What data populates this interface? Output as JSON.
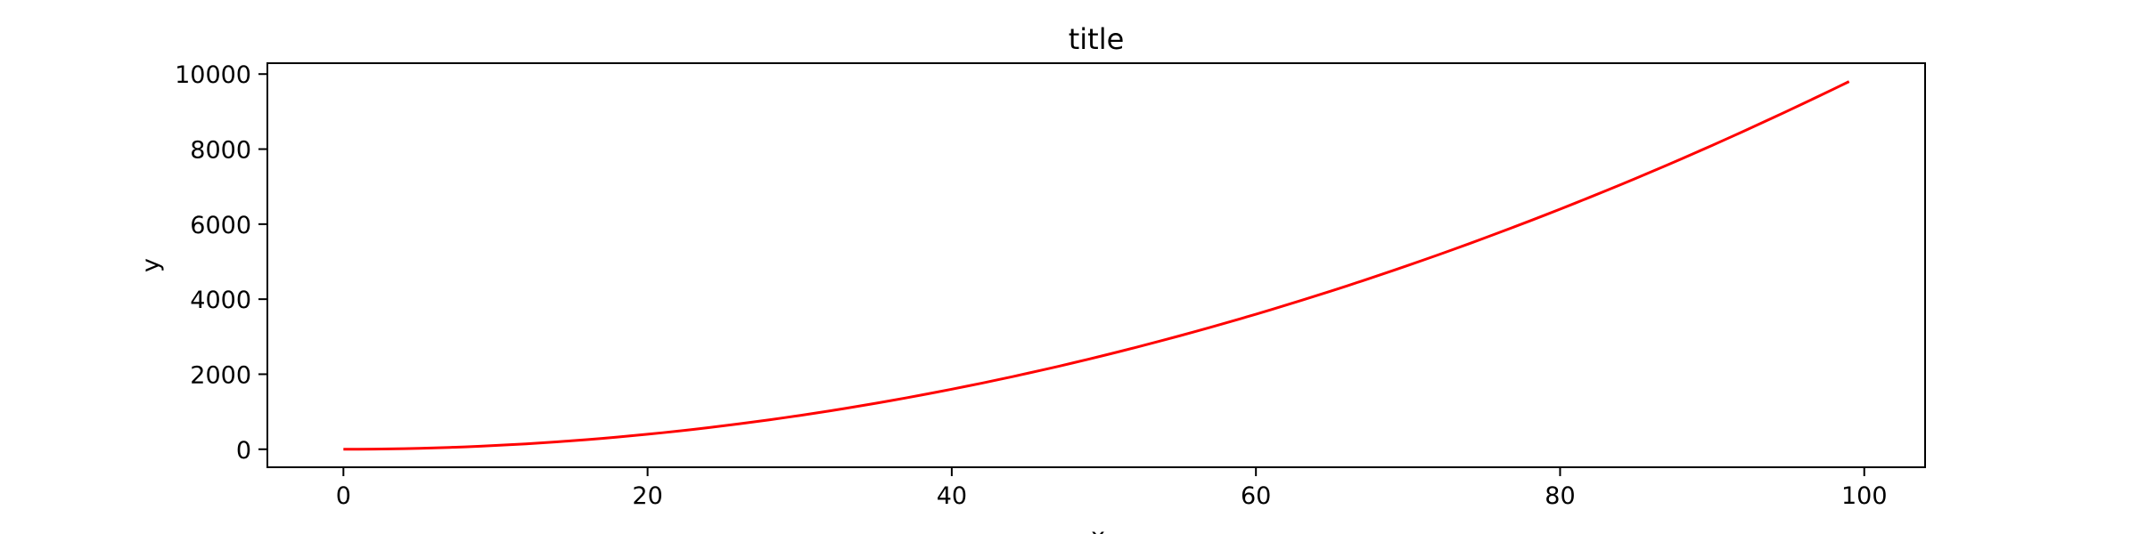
{
  "chart_data": {
    "type": "line",
    "title": "title",
    "xlabel": "x",
    "ylabel": "y",
    "xlim": [
      -5,
      104
    ],
    "ylim": [
      -480,
      10290
    ],
    "xticks": [
      0,
      20,
      40,
      60,
      80,
      100
    ],
    "yticks": [
      0,
      2000,
      4000,
      6000,
      8000,
      10000
    ],
    "grid": false,
    "legend": "none",
    "series": [
      {
        "color": "#ff0000",
        "formula": "x^2",
        "x": [
          0,
          1,
          2,
          3,
          4,
          5,
          6,
          7,
          8,
          9,
          10,
          11,
          12,
          13,
          14,
          15,
          16,
          17,
          18,
          19,
          20,
          21,
          22,
          23,
          24,
          25,
          26,
          27,
          28,
          29,
          30,
          31,
          32,
          33,
          34,
          35,
          36,
          37,
          38,
          39,
          40,
          41,
          42,
          43,
          44,
          45,
          46,
          47,
          48,
          49,
          50,
          51,
          52,
          53,
          54,
          55,
          56,
          57,
          58,
          59,
          60,
          61,
          62,
          63,
          64,
          65,
          66,
          67,
          68,
          69,
          70,
          71,
          72,
          73,
          74,
          75,
          76,
          77,
          78,
          79,
          80,
          81,
          82,
          83,
          84,
          85,
          86,
          87,
          88,
          89,
          90,
          91,
          92,
          93,
          94,
          95,
          96,
          97,
          98,
          99
        ],
        "y": [
          0,
          1,
          4,
          9,
          16,
          25,
          36,
          49,
          64,
          81,
          100,
          121,
          144,
          169,
          196,
          225,
          256,
          289,
          324,
          361,
          400,
          441,
          484,
          529,
          576,
          625,
          676,
          729,
          784,
          841,
          900,
          961,
          1024,
          1089,
          1156,
          1225,
          1296,
          1369,
          1444,
          1521,
          1600,
          1681,
          1764,
          1849,
          1936,
          2025,
          2116,
          2209,
          2304,
          2401,
          2500,
          2601,
          2704,
          2809,
          2916,
          3025,
          3136,
          3249,
          3364,
          3481,
          3600,
          3721,
          3844,
          3969,
          4096,
          4225,
          4356,
          4489,
          4624,
          4761,
          4900,
          5041,
          5184,
          5329,
          5476,
          5625,
          5776,
          5929,
          6084,
          6241,
          6400,
          6561,
          6724,
          6889,
          7056,
          7225,
          7396,
          7569,
          7744,
          7921,
          8100,
          8281,
          8464,
          8649,
          8836,
          9025,
          9216,
          9409,
          9604,
          9801
        ]
      }
    ]
  }
}
